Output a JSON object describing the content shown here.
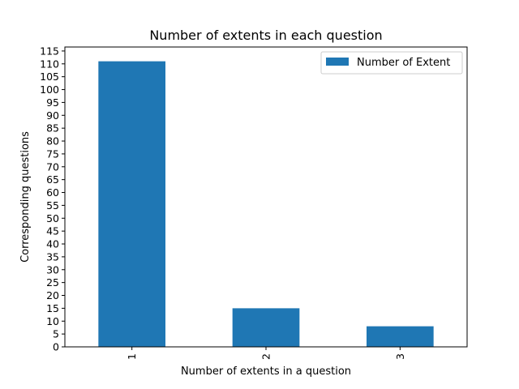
{
  "chart_data": {
    "type": "bar",
    "title": "Number of extents in each question",
    "xlabel": "Number of extents in a question",
    "ylabel": "Corresponding questions",
    "categories": [
      "1",
      "2",
      "3"
    ],
    "series": [
      {
        "name": "Number of Extent",
        "values": [
          111,
          15,
          8
        ]
      }
    ],
    "ylim": [
      0,
      116.55
    ],
    "yticks": [
      "0",
      "5",
      "10",
      "15",
      "20",
      "25",
      "30",
      "35",
      "40",
      "45",
      "50",
      "55",
      "60",
      "65",
      "70",
      "75",
      "80",
      "85",
      "90",
      "95",
      "100",
      "105",
      "110",
      "115"
    ],
    "legend": "top-right",
    "grid": false,
    "bar_color": "#1f77b4"
  }
}
